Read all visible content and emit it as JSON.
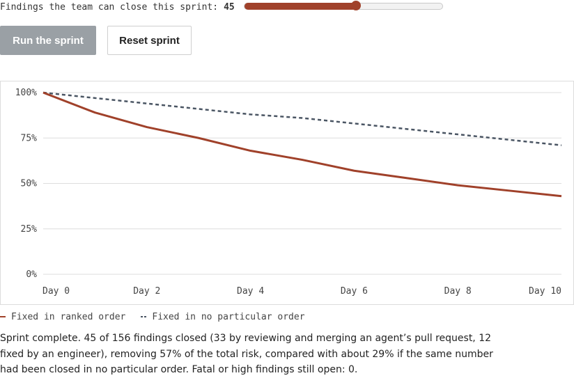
{
  "controls": {
    "slider_label": "Findings the team can close this sprint:",
    "slider_value": "45",
    "slider_min": 0,
    "slider_max": 80,
    "run_label": "Run the sprint",
    "reset_label": "Reset sprint"
  },
  "legend": {
    "ranked": "Fixed in ranked order",
    "unordered": "Fixed in no particular order"
  },
  "summary": "Sprint complete. 45 of 156 findings closed (33 by reviewing and merging an agent’s pull request, 12 fixed by an engineer), removing 57% of the total risk, compared with about 29% if the same number had been closed in no particular order. Fatal or high findings still open: 0.",
  "colors": {
    "ranked": "#a0412a",
    "unordered": "#4a5563",
    "grid": "#dddddd"
  },
  "chart_data": {
    "type": "line",
    "title": "",
    "xlabel": "",
    "ylabel": "",
    "x": [
      0,
      1,
      2,
      3,
      4,
      5,
      6,
      7,
      8,
      9,
      10
    ],
    "xticks": [
      0,
      2,
      4,
      6,
      8,
      10
    ],
    "xtick_labels": [
      "Day 0",
      "Day 2",
      "Day 4",
      "Day 6",
      "Day 8",
      "Day 10"
    ],
    "yticks": [
      0,
      25,
      50,
      75,
      100
    ],
    "ytick_labels": [
      "0%",
      "25%",
      "50%",
      "75%",
      "100%"
    ],
    "xlim": [
      0,
      10
    ],
    "ylim": [
      0,
      100
    ],
    "grid": "horizontal",
    "legend_position": "bottom-left",
    "series": [
      {
        "name": "Fixed in ranked order",
        "style": "solid",
        "values": [
          100,
          89,
          81,
          75,
          68,
          63,
          57,
          53,
          49,
          46,
          43
        ]
      },
      {
        "name": "Fixed in no particular order",
        "style": "dashed",
        "values": [
          100,
          97,
          94,
          91,
          88,
          86,
          83,
          80,
          77,
          74,
          71
        ]
      }
    ]
  }
}
